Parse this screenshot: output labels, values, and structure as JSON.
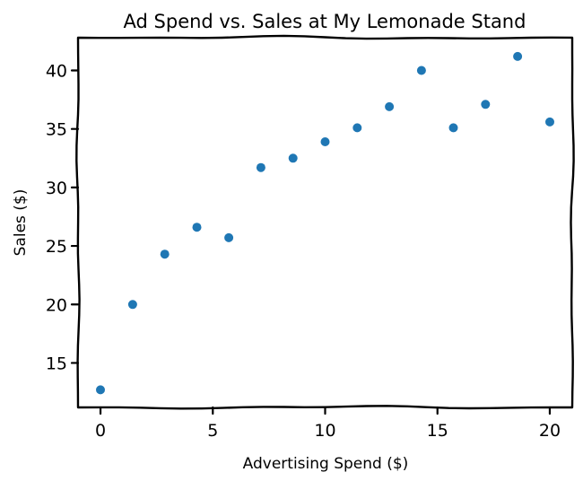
{
  "chart_data": {
    "type": "scatter",
    "title": "Ad Spend vs. Sales at My Lemonade Stand",
    "xlabel": "Advertising Spend ($)",
    "ylabel": "Sales ($)",
    "xlim": [
      -1,
      21
    ],
    "ylim": [
      11.2,
      42.8
    ],
    "xticks": [
      0,
      5,
      10,
      15,
      20
    ],
    "yticks": [
      15,
      20,
      25,
      30,
      35,
      40
    ],
    "grid": false,
    "legend": "none",
    "series": [
      {
        "color": "#1f77b4",
        "x": [
          0,
          1.43,
          2.86,
          4.29,
          5.71,
          7.14,
          8.57,
          10,
          11.43,
          12.86,
          14.29,
          15.71,
          17.14,
          18.57,
          20
        ],
        "y": [
          12.7,
          20.0,
          24.3,
          26.6,
          25.7,
          31.7,
          32.5,
          33.9,
          35.1,
          36.9,
          40.0,
          35.1,
          37.1,
          41.2,
          35.6
        ]
      }
    ]
  }
}
